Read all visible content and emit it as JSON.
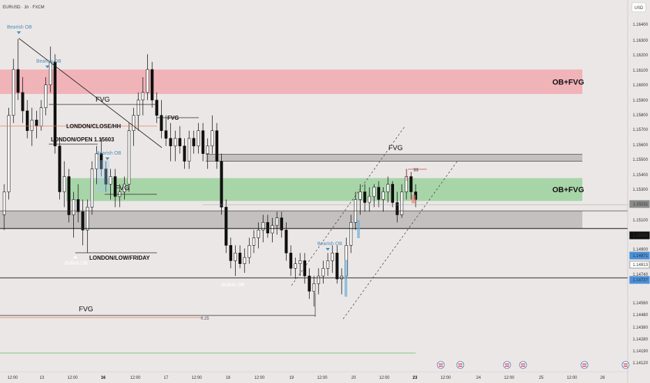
{
  "chart_data": {
    "type": "candlestick",
    "symbol_label": "EURUSD · 1h · FXCM",
    "currency_label": "USD",
    "x_ticks": [
      "12:00",
      "13",
      "12:00",
      "16",
      "12:00",
      "17",
      "12:00",
      "18",
      "12:00",
      "19",
      "12:00",
      "20",
      "12:00",
      "23",
      "12:00",
      "24",
      "12:00",
      "25",
      "12:00",
      "26"
    ],
    "y_ticks": [
      "1.16400",
      "1.16300",
      "1.16200",
      "1.16100",
      "1.16000",
      "1.15900",
      "1.15800",
      "1.15700",
      "1.15600",
      "1.15500",
      "1.15400",
      "1.15300",
      "1.15100",
      "1.14900",
      "1.14740",
      "1.14560",
      "1.14480",
      "1.14380",
      "1.14280",
      "1.14190",
      "1.14120"
    ],
    "price_badges": [
      {
        "label": "1.15211",
        "bg": "#8a8a8a",
        "value": 1.15211
      },
      {
        "label": "1.15000",
        "bg": "#111111",
        "value": 1.15
      },
      {
        "label": "1.14871",
        "bg": "#4a90d8",
        "value": 1.14871
      },
      {
        "label": "1.14813",
        "bg": "#ffffff",
        "value": 1.14813
      },
      {
        "label": "1.14727",
        "bg": "#4a90d8",
        "value": 1.14727
      }
    ],
    "zones": [
      {
        "label": "OB+FVG",
        "type": "red",
        "top": 1.1605,
        "bottom": 1.1589,
        "color": "#f0b3b8"
      },
      {
        "label": "FVG",
        "type": "gray",
        "top": 1.15495,
        "bottom": 1.1545,
        "color": "#c4c0c0"
      },
      {
        "label": "OB+FVG",
        "type": "green",
        "top": 1.1534,
        "bottom": 1.1519,
        "color": "#a8d5a8"
      },
      {
        "label": "",
        "type": "gray",
        "top": 1.15125,
        "bottom": 1.1501,
        "color": "#c4c0c0"
      }
    ],
    "annotations": {
      "fvg1": "FVG",
      "fvg2": "FVG",
      "fvg3": "FVG",
      "fvg4": "FVG",
      "fvg5": "FVG",
      "london_close": "LONDON/CLOSE/HH",
      "london_open": "LONDON/OPEN 1.15603",
      "london_low": "LONDON/LOW/FRIDAY",
      "bearish_ob_1": "Bearish OB",
      "bearish_ob_2": "Bearish OB",
      "bearish_ob_3": "Bearish OB",
      "bearish_ob_4": "Bearish OB",
      "bullish_ob_1": "Bullish OB",
      "bullish_ob_2": "Bullish OB",
      "fib_025": "0.25",
      "ss_label": "$$"
    },
    "colors": {
      "up": "#ffffff",
      "down": "#111111",
      "background": "#ece7e7"
    },
    "candles": [
      [
        1.151,
        1.153,
        1.15,
        1.1525
      ],
      [
        1.1525,
        1.158,
        1.152,
        1.1575
      ],
      [
        1.1575,
        1.1612,
        1.157,
        1.1605
      ],
      [
        1.1605,
        1.1625,
        1.1585,
        1.159
      ],
      [
        1.159,
        1.16,
        1.157,
        1.1578
      ],
      [
        1.1578,
        1.1585,
        1.156,
        1.1565
      ],
      [
        1.1565,
        1.158,
        1.1555,
        1.1572
      ],
      [
        1.1572,
        1.1578,
        1.156,
        1.1568
      ],
      [
        1.1568,
        1.1585,
        1.1565,
        1.158
      ],
      [
        1.158,
        1.16,
        1.1575,
        1.1595
      ],
      [
        1.1595,
        1.162,
        1.159,
        1.161
      ],
      [
        1.161,
        1.1615,
        1.155,
        1.1555
      ],
      [
        1.1555,
        1.156,
        1.152,
        1.1525
      ],
      [
        1.1525,
        1.1545,
        1.1515,
        1.1535
      ],
      [
        1.1535,
        1.154,
        1.1505,
        1.151
      ],
      [
        1.151,
        1.1525,
        1.1495,
        1.152
      ],
      [
        1.152,
        1.153,
        1.1505,
        1.1512
      ],
      [
        1.1512,
        1.152,
        1.149,
        1.15
      ],
      [
        1.15,
        1.152,
        1.1485,
        1.1515
      ],
      [
        1.1515,
        1.1545,
        1.151,
        1.154
      ],
      [
        1.154,
        1.1555,
        1.153,
        1.155
      ],
      [
        1.155,
        1.156,
        1.1535,
        1.154
      ],
      [
        1.154,
        1.1545,
        1.1525,
        1.153
      ],
      [
        1.153,
        1.154,
        1.152,
        1.1535
      ],
      [
        1.1535,
        1.154,
        1.1515,
        1.1522
      ],
      [
        1.1522,
        1.153,
        1.1515,
        1.1525
      ],
      [
        1.1525,
        1.1535,
        1.152,
        1.153
      ],
      [
        1.153,
        1.157,
        1.1525,
        1.1565
      ],
      [
        1.1565,
        1.158,
        1.1555,
        1.1575
      ],
      [
        1.1575,
        1.159,
        1.1565,
        1.1585
      ],
      [
        1.1585,
        1.16,
        1.1575,
        1.159
      ],
      [
        1.159,
        1.1615,
        1.1585,
        1.1605
      ],
      [
        1.1605,
        1.161,
        1.158,
        1.1585
      ],
      [
        1.1585,
        1.159,
        1.157,
        1.1575
      ],
      [
        1.1575,
        1.1585,
        1.156,
        1.1565
      ],
      [
        1.1565,
        1.1575,
        1.1555,
        1.156
      ],
      [
        1.156,
        1.157,
        1.1545,
        1.1555
      ],
      [
        1.1555,
        1.1565,
        1.1545,
        1.156
      ],
      [
        1.156,
        1.1568,
        1.155,
        1.1555
      ],
      [
        1.1555,
        1.156,
        1.154,
        1.1545
      ],
      [
        1.1545,
        1.1565,
        1.154,
        1.156
      ],
      [
        1.156,
        1.1565,
        1.155,
        1.1555
      ],
      [
        1.1555,
        1.157,
        1.155,
        1.1565
      ],
      [
        1.1565,
        1.157,
        1.1545,
        1.155
      ],
      [
        1.155,
        1.156,
        1.154,
        1.1555
      ],
      [
        1.1555,
        1.1575,
        1.155,
        1.1565
      ],
      [
        1.1565,
        1.157,
        1.154,
        1.1545
      ],
      [
        1.1545,
        1.155,
        1.151,
        1.1515
      ],
      [
        1.1515,
        1.152,
        1.1485,
        1.149
      ],
      [
        1.149,
        1.1495,
        1.1475,
        1.148
      ],
      [
        1.148,
        1.149,
        1.147,
        1.1485
      ],
      [
        1.1485,
        1.149,
        1.1475,
        1.1478
      ],
      [
        1.1478,
        1.1488,
        1.1472,
        1.1482
      ],
      [
        1.1482,
        1.1495,
        1.1478,
        1.149
      ],
      [
        1.149,
        1.15,
        1.1485,
        1.1495
      ],
      [
        1.1495,
        1.1505,
        1.1488,
        1.15
      ],
      [
        1.15,
        1.151,
        1.1492,
        1.1505
      ],
      [
        1.1505,
        1.151,
        1.1495,
        1.1498
      ],
      [
        1.1498,
        1.1508,
        1.1492,
        1.1503
      ],
      [
        1.1503,
        1.1512,
        1.1497,
        1.1508
      ],
      [
        1.1508,
        1.1512,
        1.1495,
        1.15
      ],
      [
        1.15,
        1.1505,
        1.148,
        1.1485
      ],
      [
        1.1485,
        1.149,
        1.147,
        1.1475
      ],
      [
        1.1475,
        1.1482,
        1.1468,
        1.1478
      ],
      [
        1.1478,
        1.1485,
        1.147,
        1.148
      ],
      [
        1.148,
        1.1485,
        1.1465,
        1.147
      ],
      [
        1.147,
        1.1475,
        1.1455,
        1.146
      ],
      [
        1.146,
        1.147,
        1.145,
        1.1465
      ],
      [
        1.1465,
        1.1475,
        1.1458,
        1.147
      ],
      [
        1.147,
        1.148,
        1.1465,
        1.1475
      ],
      [
        1.1475,
        1.1485,
        1.147,
        1.148
      ],
      [
        1.148,
        1.149,
        1.1472,
        1.1485
      ],
      [
        1.1485,
        1.149,
        1.1465,
        1.1468
      ],
      [
        1.1468,
        1.1475,
        1.1458,
        1.147
      ],
      [
        1.147,
        1.1495,
        1.1468,
        1.149
      ],
      [
        1.149,
        1.151,
        1.1485,
        1.1505
      ],
      [
        1.1505,
        1.1525,
        1.15,
        1.152
      ],
      [
        1.152,
        1.153,
        1.151,
        1.1525
      ],
      [
        1.1525,
        1.153,
        1.1512,
        1.1518
      ],
      [
        1.1518,
        1.1528,
        1.1512,
        1.1522
      ],
      [
        1.1522,
        1.153,
        1.1515,
        1.1528
      ],
      [
        1.1528,
        1.1532,
        1.1515,
        1.152
      ],
      [
        1.152,
        1.1528,
        1.1512,
        1.1525
      ],
      [
        1.1525,
        1.1535,
        1.1518,
        1.153
      ],
      [
        1.153,
        1.1532,
        1.1515,
        1.1518
      ],
      [
        1.1518,
        1.1525,
        1.1505,
        1.151
      ],
      [
        1.151,
        1.153,
        1.1508,
        1.1525
      ],
      [
        1.1525,
        1.154,
        1.152,
        1.1535
      ],
      [
        1.1535,
        1.1538,
        1.152,
        1.1525
      ],
      [
        1.1525,
        1.153,
        1.1515,
        1.152
      ]
    ]
  }
}
